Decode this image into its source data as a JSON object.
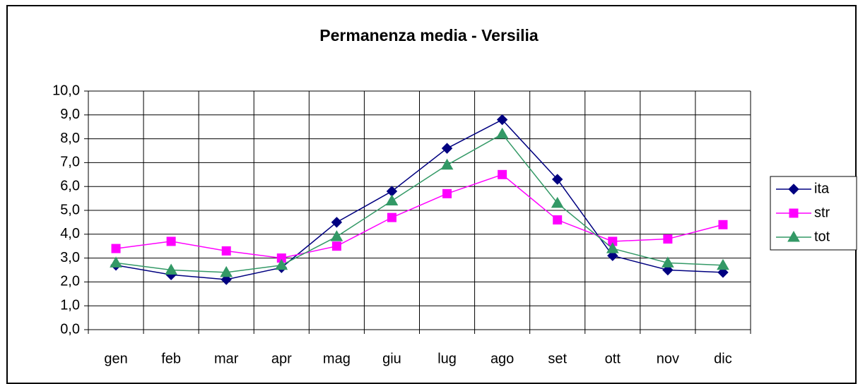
{
  "chart_data": {
    "type": "line",
    "title": "Permanenza media - Versilia",
    "categories": [
      "gen",
      "feb",
      "mar",
      "apr",
      "mag",
      "giu",
      "lug",
      "ago",
      "set",
      "ott",
      "nov",
      "dic"
    ],
    "series": [
      {
        "name": "ita",
        "color": "#000080",
        "marker": "diamond",
        "values": [
          2.7,
          2.3,
          2.1,
          2.6,
          4.5,
          5.8,
          7.6,
          8.8,
          6.3,
          3.1,
          2.5,
          2.4
        ]
      },
      {
        "name": "str",
        "color": "#ff00ff",
        "marker": "square",
        "values": [
          3.4,
          3.7,
          3.3,
          3.0,
          3.5,
          4.7,
          5.7,
          6.5,
          4.6,
          3.7,
          3.8,
          4.4
        ]
      },
      {
        "name": "tot",
        "color": "#339966",
        "marker": "triangle",
        "values": [
          2.8,
          2.5,
          2.4,
          2.7,
          3.9,
          5.4,
          6.9,
          8.2,
          5.3,
          3.4,
          2.8,
          2.7
        ]
      }
    ],
    "ylim": [
      0,
      10
    ],
    "yticks": [
      {
        "value": 0,
        "label": "0,0"
      },
      {
        "value": 1,
        "label": "1,0"
      },
      {
        "value": 2,
        "label": "2,0"
      },
      {
        "value": 3,
        "label": "3,0"
      },
      {
        "value": 4,
        "label": "4,0"
      },
      {
        "value": 5,
        "label": "5,0"
      },
      {
        "value": 6,
        "label": "6,0"
      },
      {
        "value": 7,
        "label": "7,0"
      },
      {
        "value": 8,
        "label": "8,0"
      },
      {
        "value": 9,
        "label": "9,0"
      },
      {
        "value": 10,
        "label": "10,0"
      }
    ],
    "grid": true,
    "legend": "right"
  }
}
